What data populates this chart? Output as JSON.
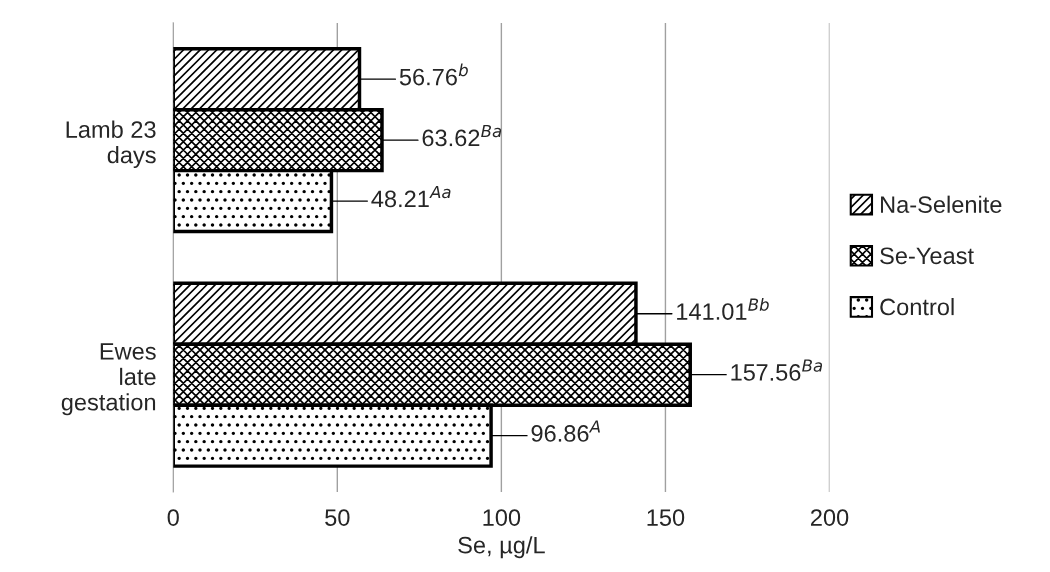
{
  "chart_data": {
    "type": "bar",
    "orientation": "horizontal",
    "categories": [
      "Lamb 23 days",
      "Ewes late gestation"
    ],
    "series": [
      {
        "name": "Na-Selenite",
        "color": "#000000",
        "values": [
          56.76,
          141.01
        ],
        "value_labels": [
          "56.76$^{b}$",
          "141.01$^{Bb}$"
        ]
      },
      {
        "name": "Se-Yeast",
        "color": "#000000",
        "values": [
          63.62,
          157.56
        ],
        "value_labels": [
          "63.62$^{Ba}$",
          "157.56$^{Ba}$"
        ]
      },
      {
        "name": "Control",
        "color": "#000000",
        "values": [
          48.21,
          96.86
        ],
        "value_labels": [
          "48.21$^{Aa}$",
          "96.86$^{A}$"
        ]
      }
    ],
    "xlabel": "Se, µg/L",
    "xlim": [
      0,
      200
    ],
    "xticks": [
      0,
      50,
      100,
      150,
      200
    ],
    "grid": "x",
    "legend": "right"
  }
}
